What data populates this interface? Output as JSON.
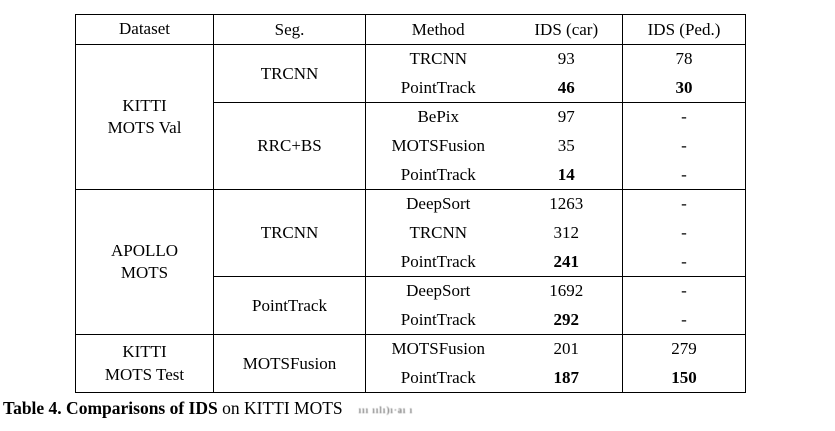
{
  "caption": {
    "bold_part": "Table 4. Comparisons of IDS",
    "regular_part": " on KITTI MOTS",
    "tail": "ııı ıılı)ı·aı ı"
  },
  "table": {
    "headers": [
      "Dataset",
      "Seg.",
      "Method",
      "IDS (car)",
      "IDS (Ped.)"
    ],
    "groups": [
      {
        "dataset": "KITTI\nMOTS Val",
        "segments": [
          {
            "seg": "TRCNN",
            "rows": [
              {
                "method": "TRCNN",
                "car": "93",
                "ped": "78",
                "bold": false
              },
              {
                "method": "PointTrack",
                "car": "46",
                "ped": "30",
                "bold": true
              }
            ]
          },
          {
            "seg": "RRC+BS",
            "rows": [
              {
                "method": "BePix",
                "car": "97",
                "ped": "-",
                "bold": false
              },
              {
                "method": "MOTSFusion",
                "car": "35",
                "ped": "-",
                "bold": false
              },
              {
                "method": "PointTrack",
                "car": "14",
                "ped": "-",
                "bold": true
              }
            ]
          }
        ]
      },
      {
        "dataset": "APOLLO\nMOTS",
        "segments": [
          {
            "seg": "TRCNN",
            "rows": [
              {
                "method": "DeepSort",
                "car": "1263",
                "ped": "-",
                "bold": false
              },
              {
                "method": "TRCNN",
                "car": "312",
                "ped": "-",
                "bold": false
              },
              {
                "method": "PointTrack",
                "car": "241",
                "ped": "-",
                "bold": true
              }
            ]
          },
          {
            "seg": "PointTrack",
            "rows": [
              {
                "method": "DeepSort",
                "car": "1692",
                "ped": "-",
                "bold": false
              },
              {
                "method": "PointTrack",
                "car": "292",
                "ped": "-",
                "bold": true
              }
            ]
          }
        ]
      },
      {
        "dataset": "KITTI\nMOTS Test",
        "segments": [
          {
            "seg": "MOTSFusion",
            "rows": [
              {
                "method": "MOTSFusion",
                "car": "201",
                "ped": "279",
                "bold": false
              },
              {
                "method": "PointTrack",
                "car": "187",
                "ped": "150",
                "bold": true
              }
            ]
          }
        ]
      }
    ]
  }
}
